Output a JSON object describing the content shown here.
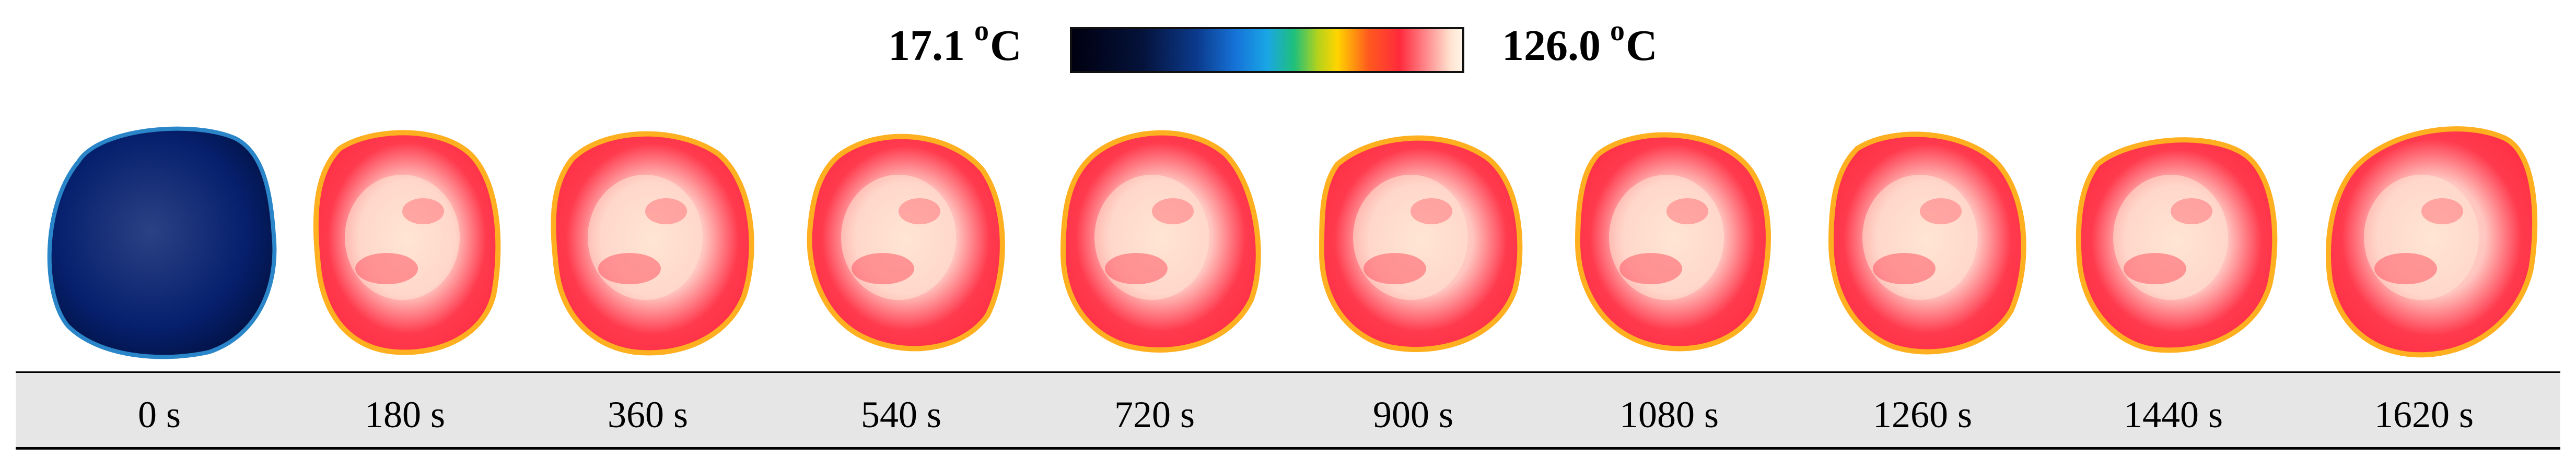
{
  "scale": {
    "min_label": "17.1",
    "max_label": "126.0",
    "degree_symbol": "o",
    "unit": "C",
    "gradient_colors": [
      "#000010",
      "#0b3a8c",
      "#19a6e6",
      "#1fc07a",
      "#ffd400",
      "#ff2a3c",
      "#fff4e8"
    ]
  },
  "frames": [
    {
      "time": "0 s",
      "palette": "cold"
    },
    {
      "time": "180 s",
      "palette": "hot"
    },
    {
      "time": "360 s",
      "palette": "hot"
    },
    {
      "time": "540 s",
      "palette": "hot"
    },
    {
      "time": "720 s",
      "palette": "hot"
    },
    {
      "time": "900 s",
      "palette": "hot"
    },
    {
      "time": "1080 s",
      "palette": "hot"
    },
    {
      "time": "1260 s",
      "palette": "hot"
    },
    {
      "time": "1440 s",
      "palette": "hot"
    },
    {
      "time": "1620 s",
      "palette": "hot"
    }
  ],
  "colors": {
    "cold_body": "#06206e",
    "cold_edge": "#2a86c8",
    "hot_edge": "#ff3a4e",
    "hot_rim": "#ffb020",
    "hot_core": "#ffe6d4",
    "label_bg": "#e6e6e6"
  }
}
